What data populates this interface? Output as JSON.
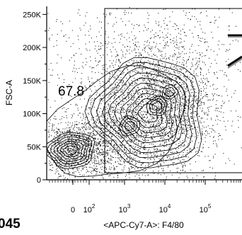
{
  "chart_data": {
    "type": "contour",
    "xlabel": "<APC-Cy7-A>: F4/80",
    "ylabel": "FSC-A",
    "x_scale": "biexponential",
    "y_scale": "linear",
    "ylim": [
      0,
      262144
    ],
    "x_ticks": [
      {
        "label": "0",
        "exp": ""
      },
      {
        "label": "10",
        "exp": "2"
      },
      {
        "label": "10",
        "exp": "3"
      },
      {
        "label": "10",
        "exp": "4"
      },
      {
        "label": "10",
        "exp": "5"
      }
    ],
    "y_ticks": [
      {
        "label": "0",
        "value": 0
      },
      {
        "label": "50K",
        "value": 50000
      },
      {
        "label": "100K",
        "value": 100000
      },
      {
        "label": "150K",
        "value": 150000
      },
      {
        "label": "200K",
        "value": 200000
      },
      {
        "label": "250K",
        "value": 250000
      }
    ],
    "gate": {
      "label": "67.8",
      "x_range_label": "> 10^2",
      "y_range": [
        38000,
        256000
      ]
    },
    "corner_text": "045",
    "populations": [
      {
        "name": "",
        "x_decade": 1.3,
        "y": 62000
      },
      {
        "name": "",
        "x_decade": 3.1,
        "y": 75000
      },
      {
        "name": "",
        "x_decade": 3.4,
        "y": 100000
      }
    ]
  }
}
